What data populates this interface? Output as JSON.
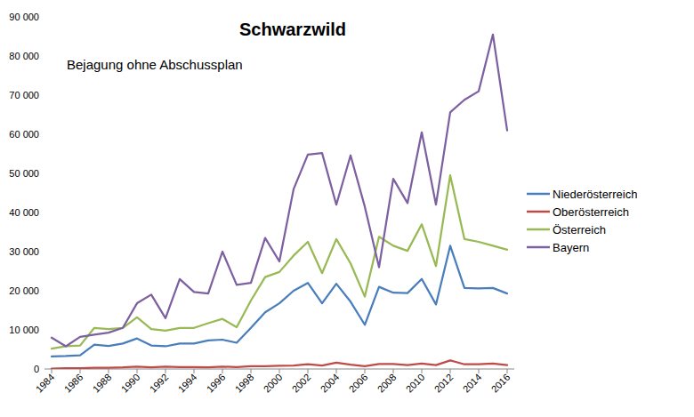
{
  "chart_data": {
    "type": "line",
    "title": "Schwarzwild",
    "annotation": "Bejagung ohne Abschussplan",
    "x": [
      1984,
      1985,
      1986,
      1987,
      1988,
      1989,
      1990,
      1991,
      1992,
      1993,
      1994,
      1995,
      1996,
      1997,
      1998,
      1999,
      2000,
      2001,
      2002,
      2003,
      2004,
      2005,
      2006,
      2007,
      2008,
      2009,
      2010,
      2011,
      2012,
      2013,
      2014,
      2015,
      2016
    ],
    "xlim": [
      1983.5,
      2016.5
    ],
    "xticks": [
      1984,
      1986,
      1988,
      1990,
      1992,
      1994,
      1996,
      1998,
      2000,
      2002,
      2004,
      2006,
      2008,
      2010,
      2012,
      2014,
      2016
    ],
    "ylim": [
      0,
      90000
    ],
    "yticks": [
      0,
      {
        "value": 10000,
        "label": "10 000"
      },
      {
        "value": 20000,
        "label": "20 000"
      },
      {
        "value": 30000,
        "label": "30 000"
      },
      {
        "value": 40000,
        "label": "40 000"
      },
      {
        "value": 50000,
        "label": "50 000"
      },
      {
        "value": 60000,
        "label": "60 000"
      },
      {
        "value": 70000,
        "label": "70 000"
      },
      {
        "value": 80000,
        "label": "80 000"
      },
      {
        "value": 90000,
        "label": "90 000"
      }
    ],
    "grid": false,
    "legend": "right",
    "series": [
      {
        "name": "Niederösterreich",
        "color": "#4a7ebb",
        "values": [
          3200,
          3300,
          3500,
          6200,
          5900,
          6500,
          7800,
          6000,
          5800,
          6500,
          6500,
          7300,
          7500,
          6700,
          10500,
          14500,
          16800,
          20000,
          22000,
          16800,
          21800,
          17200,
          11300,
          21000,
          19500,
          19400,
          23000,
          16500,
          31500,
          20700,
          20600,
          20700,
          19300
        ]
      },
      {
        "name": "Oberösterreich",
        "color": "#be4b48",
        "values": [
          100,
          200,
          200,
          300,
          300,
          400,
          600,
          400,
          600,
          500,
          500,
          400,
          600,
          500,
          700,
          700,
          800,
          900,
          1200,
          900,
          1600,
          1100,
          700,
          1300,
          1300,
          1000,
          1400,
          1000,
          2200,
          1200,
          1200,
          1400,
          1000
        ]
      },
      {
        "name": "Österreich",
        "color": "#98b954",
        "values": [
          5200,
          5800,
          6000,
          10500,
          10200,
          10500,
          13200,
          10200,
          9800,
          10500,
          10500,
          11700,
          12800,
          10700,
          17500,
          23500,
          24800,
          29000,
          32500,
          24500,
          33200,
          27000,
          18500,
          33800,
          31500,
          30200,
          37000,
          26300,
          49500,
          33200,
          32500,
          31500,
          30500
        ]
      },
      {
        "name": "Bayern",
        "color": "#7d60a0",
        "values": [
          8000,
          5800,
          8200,
          8800,
          9300,
          10500,
          16800,
          19000,
          13000,
          23000,
          19700,
          19300,
          30000,
          21500,
          22000,
          33500,
          27500,
          46000,
          54800,
          55200,
          42000,
          54600,
          41500,
          26000,
          48600,
          42400,
          60500,
          42000,
          65600,
          68800,
          71000,
          85500,
          61000
        ]
      }
    ]
  }
}
